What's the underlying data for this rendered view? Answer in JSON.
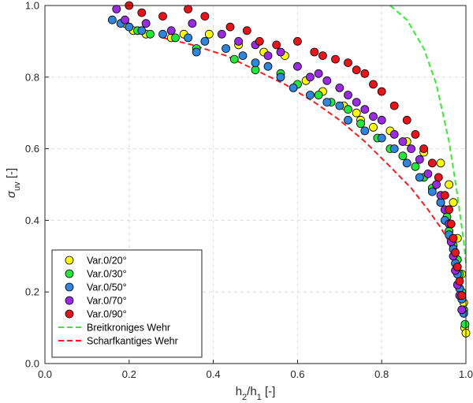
{
  "chart_data": {
    "type": "scatter",
    "xlim": [
      0,
      1
    ],
    "ylim": [
      0,
      1
    ],
    "xticks": [
      "0.0",
      "0.2",
      "0.4",
      "0.6",
      "0.8",
      "1.0"
    ],
    "yticks": [
      "0.0",
      "0.2",
      "0.4",
      "0.6",
      "0.8",
      "1.0"
    ],
    "xlabel": {
      "main": "h",
      "sub1": "2",
      "sep": "/h",
      "sub2": "1",
      "unit": " [-]"
    },
    "ylabel": {
      "main": "σ",
      "sub": "uv",
      "unit": " [-]"
    },
    "grid": true,
    "legend_position": "bottom-left",
    "series": [
      {
        "name": "Var.0/20°",
        "kind": "scatter",
        "color": "#ffff00",
        "points": [
          [
            0.19,
            0.95
          ],
          [
            0.21,
            0.93
          ],
          [
            0.24,
            0.92
          ],
          [
            0.3,
            0.91
          ],
          [
            0.33,
            0.92
          ],
          [
            0.39,
            0.92
          ],
          [
            0.46,
            0.89
          ],
          [
            0.52,
            0.87
          ],
          [
            0.57,
            0.86
          ],
          [
            0.62,
            0.79
          ],
          [
            0.66,
            0.76
          ],
          [
            0.71,
            0.72
          ],
          [
            0.74,
            0.7
          ],
          [
            0.75,
            0.68
          ],
          [
            0.78,
            0.66
          ],
          [
            0.82,
            0.65
          ],
          [
            0.86,
            0.62
          ],
          [
            0.9,
            0.59
          ],
          [
            0.94,
            0.56
          ],
          [
            0.96,
            0.5
          ],
          [
            0.97,
            0.45
          ],
          [
            0.98,
            0.35
          ],
          [
            0.99,
            0.25
          ],
          [
            0.995,
            0.17
          ],
          [
            0.997,
            0.1
          ],
          [
            1.0,
            0.085
          ]
        ]
      },
      {
        "name": "Var.0/30°",
        "kind": "scatter",
        "color": "#22e83a",
        "points": [
          [
            0.22,
            0.93
          ],
          [
            0.25,
            0.92
          ],
          [
            0.31,
            0.91
          ],
          [
            0.36,
            0.88
          ],
          [
            0.45,
            0.85
          ],
          [
            0.5,
            0.82
          ],
          [
            0.56,
            0.81
          ],
          [
            0.6,
            0.78
          ],
          [
            0.65,
            0.75
          ],
          [
            0.68,
            0.73
          ],
          [
            0.72,
            0.71
          ],
          [
            0.75,
            0.67
          ],
          [
            0.79,
            0.63
          ],
          [
            0.82,
            0.6
          ],
          [
            0.85,
            0.58
          ],
          [
            0.88,
            0.55
          ],
          [
            0.9,
            0.52
          ],
          [
            0.92,
            0.49
          ],
          [
            0.94,
            0.45
          ],
          [
            0.955,
            0.41
          ],
          [
            0.96,
            0.37
          ],
          [
            0.97,
            0.33
          ],
          [
            0.98,
            0.29
          ],
          [
            0.985,
            0.25
          ],
          [
            0.99,
            0.2
          ],
          [
            0.995,
            0.15
          ],
          [
            0.998,
            0.11
          ]
        ]
      },
      {
        "name": "Var.0/50°",
        "kind": "scatter",
        "color": "#2f86dc",
        "points": [
          [
            0.16,
            0.96
          ],
          [
            0.18,
            0.95
          ],
          [
            0.2,
            0.94
          ],
          [
            0.23,
            0.93
          ],
          [
            0.28,
            0.92
          ],
          [
            0.34,
            0.91
          ],
          [
            0.36,
            0.87
          ],
          [
            0.38,
            0.9
          ],
          [
            0.43,
            0.88
          ],
          [
            0.47,
            0.86
          ],
          [
            0.5,
            0.84
          ],
          [
            0.53,
            0.83
          ],
          [
            0.56,
            0.8
          ],
          [
            0.59,
            0.77
          ],
          [
            0.63,
            0.75
          ],
          [
            0.67,
            0.73
          ],
          [
            0.7,
            0.72
          ],
          [
            0.72,
            0.68
          ],
          [
            0.76,
            0.65
          ],
          [
            0.8,
            0.63
          ],
          [
            0.83,
            0.6
          ],
          [
            0.86,
            0.56
          ],
          [
            0.89,
            0.52
          ],
          [
            0.92,
            0.48
          ],
          [
            0.94,
            0.45
          ],
          [
            0.95,
            0.4
          ],
          [
            0.96,
            0.36
          ],
          [
            0.97,
            0.32
          ],
          [
            0.975,
            0.28
          ],
          [
            0.98,
            0.25
          ],
          [
            0.985,
            0.21
          ],
          [
            0.99,
            0.18
          ],
          [
            0.995,
            0.14
          ]
        ]
      },
      {
        "name": "Var.0/70°",
        "kind": "scatter",
        "color": "#9b2be0",
        "points": [
          [
            0.17,
            0.99
          ],
          [
            0.19,
            0.96
          ],
          [
            0.24,
            0.95
          ],
          [
            0.3,
            0.93
          ],
          [
            0.35,
            0.95
          ],
          [
            0.42,
            0.92
          ],
          [
            0.46,
            0.9
          ],
          [
            0.5,
            0.89
          ],
          [
            0.53,
            0.86
          ],
          [
            0.56,
            0.87
          ],
          [
            0.6,
            0.83
          ],
          [
            0.63,
            0.8
          ],
          [
            0.65,
            0.81
          ],
          [
            0.67,
            0.79
          ],
          [
            0.7,
            0.77
          ],
          [
            0.72,
            0.75
          ],
          [
            0.74,
            0.73
          ],
          [
            0.76,
            0.71
          ],
          [
            0.78,
            0.69
          ],
          [
            0.8,
            0.68
          ],
          [
            0.83,
            0.64
          ],
          [
            0.85,
            0.62
          ],
          [
            0.87,
            0.6
          ],
          [
            0.89,
            0.57
          ],
          [
            0.91,
            0.53
          ],
          [
            0.93,
            0.5
          ],
          [
            0.94,
            0.47
          ],
          [
            0.95,
            0.43
          ],
          [
            0.96,
            0.39
          ],
          [
            0.965,
            0.34
          ],
          [
            0.97,
            0.3
          ],
          [
            0.975,
            0.26
          ],
          [
            0.98,
            0.22
          ],
          [
            0.985,
            0.19
          ],
          [
            0.99,
            0.15
          ]
        ]
      },
      {
        "name": "Var.0/90°",
        "kind": "scatter",
        "color": "#e8141b",
        "points": [
          [
            0.2,
            1.0
          ],
          [
            0.23,
            0.98
          ],
          [
            0.28,
            0.97
          ],
          [
            0.34,
            0.99
          ],
          [
            0.38,
            0.97
          ],
          [
            0.44,
            0.94
          ],
          [
            0.48,
            0.93
          ],
          [
            0.51,
            0.9
          ],
          [
            0.55,
            0.89
          ],
          [
            0.6,
            0.9
          ],
          [
            0.64,
            0.87
          ],
          [
            0.66,
            0.86
          ],
          [
            0.69,
            0.85
          ],
          [
            0.72,
            0.84
          ],
          [
            0.74,
            0.82
          ],
          [
            0.76,
            0.81
          ],
          [
            0.78,
            0.78
          ],
          [
            0.8,
            0.76
          ],
          [
            0.83,
            0.72
          ],
          [
            0.86,
            0.68
          ],
          [
            0.88,
            0.64
          ],
          [
            0.9,
            0.6
          ],
          [
            0.92,
            0.56
          ],
          [
            0.935,
            0.52
          ],
          [
            0.95,
            0.47
          ],
          [
            0.96,
            0.43
          ],
          [
            0.965,
            0.39
          ],
          [
            0.97,
            0.35
          ],
          [
            0.975,
            0.31
          ],
          [
            0.98,
            0.27
          ],
          [
            0.985,
            0.23
          ],
          [
            0.99,
            0.19
          ]
        ]
      },
      {
        "name": "Breitkroniges Wehr",
        "kind": "line",
        "color": "#3ae83a",
        "x": [
          0.82,
          0.86,
          0.9,
          0.93,
          0.96,
          0.98,
          0.995,
          1.0
        ],
        "y": [
          1.0,
          0.96,
          0.88,
          0.78,
          0.62,
          0.47,
          0.34,
          0.28
        ]
      },
      {
        "name": "Scharfkantiges Wehr",
        "kind": "line",
        "color": "#f01e1e",
        "x": [
          0.28,
          0.35,
          0.43,
          0.5,
          0.57,
          0.64,
          0.7,
          0.76,
          0.82,
          0.87,
          0.91,
          0.94,
          0.96,
          0.975,
          0.985,
          0.995,
          1.0
        ],
        "y": [
          0.91,
          0.89,
          0.86,
          0.82,
          0.78,
          0.73,
          0.68,
          0.62,
          0.55,
          0.49,
          0.43,
          0.38,
          0.34,
          0.3,
          0.26,
          0.2,
          0.15
        ]
      }
    ]
  }
}
